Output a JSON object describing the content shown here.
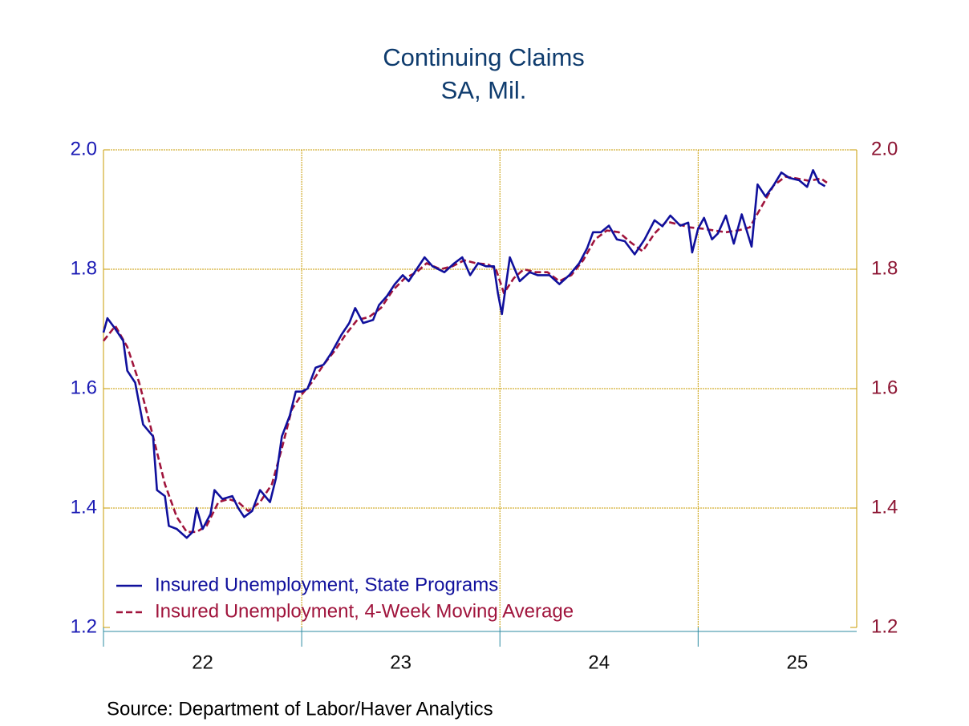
{
  "chart_data": {
    "type": "line",
    "title": "Continuing Claims",
    "subtitle": "SA, Mil.",
    "source": "Source:  Department of Labor/Haver Analytics",
    "xlim": [
      22,
      25.8
    ],
    "xticks": [
      {
        "value": 22.5,
        "label": "22"
      },
      {
        "value": 23.5,
        "label": "23"
      },
      {
        "value": 24.5,
        "label": "24"
      },
      {
        "value": 25.5,
        "label": "25"
      }
    ],
    "xgrid": [
      23,
      24,
      25
    ],
    "ylim": [
      1.2,
      2.0
    ],
    "yticks": [
      1.2,
      1.4,
      1.6,
      1.8,
      {
        "value": 2,
        "label": "2.0"
      }
    ],
    "y2lim": [
      1.2,
      2.0
    ],
    "y2ticks": [
      1.2,
      1.4,
      1.6,
      1.8,
      {
        "value": 2,
        "label": "2.0"
      }
    ],
    "grid": true,
    "legend": "lower left",
    "series": [
      {
        "name": "Insured Unemployment, State Programs",
        "color": "#10109c",
        "dash": false,
        "x": [
          22.0,
          22.02,
          22.06,
          22.1,
          22.12,
          22.16,
          22.2,
          22.25,
          22.27,
          22.31,
          22.33,
          22.37,
          22.42,
          22.45,
          22.47,
          22.5,
          22.54,
          22.56,
          22.6,
          22.65,
          22.68,
          22.71,
          22.75,
          22.79,
          22.84,
          22.87,
          22.9,
          22.94,
          22.97,
          23.0,
          23.03,
          23.07,
          23.11,
          23.15,
          23.2,
          23.24,
          23.27,
          23.31,
          23.36,
          23.39,
          23.43,
          23.47,
          23.51,
          23.54,
          23.58,
          23.62,
          23.66,
          23.72,
          23.77,
          23.81,
          23.85,
          23.89,
          23.93,
          23.97,
          23.99,
          24.01,
          24.05,
          24.1,
          24.15,
          24.19,
          24.25,
          24.3,
          24.35,
          24.4,
          24.44,
          24.47,
          24.51,
          24.55,
          24.59,
          24.63,
          24.68,
          24.73,
          24.78,
          24.82,
          24.86,
          24.91,
          24.95,
          24.97,
          25.0,
          25.03,
          25.07,
          25.1,
          25.14,
          25.18,
          25.22,
          25.27,
          25.3,
          25.34,
          25.38,
          25.42,
          25.46,
          25.51,
          25.55,
          25.58,
          25.61,
          25.64
        ],
        "values": [
          1.694,
          1.718,
          1.7,
          1.68,
          1.63,
          1.61,
          1.54,
          1.52,
          1.43,
          1.42,
          1.37,
          1.365,
          1.35,
          1.36,
          1.4,
          1.365,
          1.39,
          1.43,
          1.415,
          1.42,
          1.4,
          1.385,
          1.395,
          1.43,
          1.41,
          1.45,
          1.52,
          1.555,
          1.595,
          1.595,
          1.6,
          1.635,
          1.64,
          1.66,
          1.69,
          1.71,
          1.735,
          1.71,
          1.715,
          1.74,
          1.755,
          1.775,
          1.79,
          1.78,
          1.8,
          1.82,
          1.805,
          1.795,
          1.81,
          1.82,
          1.79,
          1.81,
          1.805,
          1.805,
          1.76,
          1.725,
          1.82,
          1.78,
          1.795,
          1.79,
          1.79,
          1.775,
          1.79,
          1.81,
          1.835,
          1.862,
          1.862,
          1.873,
          1.85,
          1.847,
          1.825,
          1.85,
          1.882,
          1.872,
          1.89,
          1.873,
          1.878,
          1.828,
          1.868,
          1.886,
          1.85,
          1.86,
          1.89,
          1.843,
          1.892,
          1.838,
          1.942,
          1.922,
          1.94,
          1.962,
          1.953,
          1.949,
          1.938,
          1.966,
          1.945,
          1.939
        ]
      },
      {
        "name": "Insured Unemployment, 4-Week Moving Average",
        "color": "#a0143c",
        "dash": true,
        "x": [
          22.0,
          22.06,
          22.12,
          22.18,
          22.25,
          22.31,
          22.37,
          22.42,
          22.47,
          22.52,
          22.58,
          22.63,
          22.68,
          22.73,
          22.79,
          22.85,
          22.9,
          22.95,
          23.0,
          23.05,
          23.11,
          23.17,
          23.22,
          23.28,
          23.34,
          23.4,
          23.46,
          23.52,
          23.58,
          23.63,
          23.7,
          23.76,
          23.82,
          23.88,
          23.94,
          23.98,
          24.02,
          24.07,
          24.12,
          24.18,
          24.24,
          24.3,
          24.36,
          24.42,
          24.48,
          24.54,
          24.6,
          24.66,
          24.72,
          24.78,
          24.84,
          24.9,
          24.96,
          25.02,
          25.08,
          25.14,
          25.2,
          25.26,
          25.32,
          25.38,
          25.44,
          25.5,
          25.56,
          25.62,
          25.65
        ],
        "values": [
          1.68,
          1.705,
          1.67,
          1.61,
          1.52,
          1.44,
          1.385,
          1.36,
          1.36,
          1.37,
          1.41,
          1.415,
          1.41,
          1.395,
          1.41,
          1.44,
          1.5,
          1.565,
          1.59,
          1.61,
          1.64,
          1.665,
          1.69,
          1.715,
          1.72,
          1.735,
          1.765,
          1.785,
          1.795,
          1.81,
          1.8,
          1.805,
          1.815,
          1.81,
          1.808,
          1.8,
          1.76,
          1.785,
          1.8,
          1.795,
          1.795,
          1.78,
          1.79,
          1.815,
          1.85,
          1.865,
          1.862,
          1.845,
          1.83,
          1.86,
          1.88,
          1.875,
          1.87,
          1.868,
          1.865,
          1.862,
          1.865,
          1.87,
          1.905,
          1.94,
          1.955,
          1.952,
          1.948,
          1.952,
          1.945
        ]
      }
    ]
  }
}
